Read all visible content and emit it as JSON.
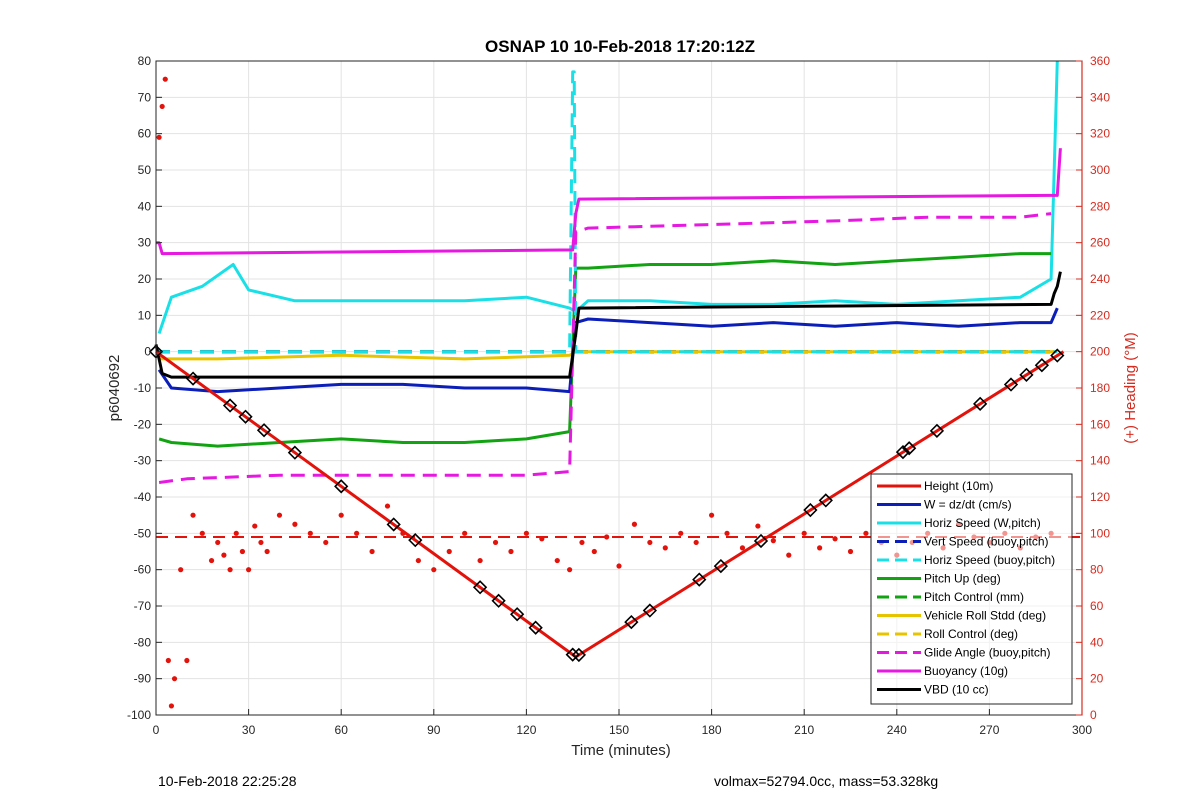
{
  "chart_data": {
    "type": "line",
    "title": "OSNAP 10 10-Feb-2018 17:20:12Z",
    "xlabel": "Time (minutes)",
    "ylabel": "p6040692",
    "y2label": "(+) Heading (°M)",
    "xlim": [
      0,
      300
    ],
    "ylim": [
      -100,
      80
    ],
    "y2lim": [
      0,
      360
    ],
    "xticks": [
      "0",
      "30",
      "60",
      "90",
      "120",
      "150",
      "180",
      "210",
      "240",
      "270",
      "300"
    ],
    "yticks": [
      "80",
      "70",
      "60",
      "50",
      "40",
      "30",
      "20",
      "10",
      "0",
      "-10",
      "-20",
      "-30",
      "-40",
      "-50",
      "-60",
      "-70",
      "-80",
      "-90",
      "-100"
    ],
    "y2ticks": [
      "360",
      "340",
      "320",
      "300",
      "280",
      "260",
      "240",
      "220",
      "200",
      "180",
      "160",
      "140",
      "120",
      "100",
      "80",
      "60",
      "40",
      "20",
      "0"
    ],
    "grid": true,
    "legend_position": "bottom-right",
    "series": [
      {
        "name": "Height (10m)",
        "color": "#e3120b",
        "style": "solid",
        "x": [
          0,
          136,
          294
        ],
        "y": [
          0,
          -84,
          0
        ]
      },
      {
        "name": "W = dz/dt (cm/s)",
        "color": "#0b1fb8",
        "style": "solid",
        "x": [
          1,
          5,
          20,
          40,
          60,
          80,
          100,
          120,
          134,
          136,
          140,
          160,
          180,
          200,
          220,
          240,
          260,
          280,
          290,
          292
        ],
        "y": [
          -5,
          -10,
          -11,
          -10,
          -9,
          -9,
          -10,
          -10,
          -11,
          8,
          9,
          8,
          7,
          8,
          7,
          8,
          7,
          8,
          8,
          12
        ]
      },
      {
        "name": "Horiz Speed (W,pitch)",
        "color": "#19e0e6",
        "style": "solid",
        "x": [
          1,
          5,
          15,
          25,
          30,
          45,
          60,
          80,
          100,
          120,
          134,
          136,
          140,
          160,
          180,
          200,
          220,
          240,
          260,
          280,
          290,
          292
        ],
        "y": [
          5,
          15,
          18,
          24,
          17,
          14,
          14,
          14,
          14,
          15,
          12,
          11,
          14,
          14,
          13,
          13,
          14,
          13,
          14,
          15,
          20,
          80
        ]
      },
      {
        "name": "Vert Speed (buoy,pitch)",
        "color": "#0b1fb8",
        "style": "dashed",
        "x": [
          0,
          135,
          136,
          292
        ],
        "y": [
          0,
          0,
          0,
          0
        ]
      },
      {
        "name": "Horiz Speed (buoy,pitch)",
        "color": "#19e0e6",
        "style": "dashed",
        "x": [
          0,
          134,
          135,
          135.5,
          136,
          292
        ],
        "y": [
          0,
          0,
          77,
          77,
          0,
          0
        ]
      },
      {
        "name": "Pitch Up (deg)",
        "color": "#12a312",
        "style": "solid",
        "x": [
          1,
          5,
          20,
          40,
          60,
          80,
          100,
          120,
          134,
          136,
          140,
          160,
          180,
          200,
          220,
          240,
          260,
          280,
          290
        ],
        "y": [
          -24,
          -25,
          -26,
          -25,
          -24,
          -25,
          -25,
          -24,
          -22,
          23,
          23,
          24,
          24,
          25,
          24,
          25,
          26,
          27,
          27
        ]
      },
      {
        "name": "Pitch Control (mm)",
        "color": "#12a312",
        "style": "dashed",
        "x": [
          0,
          292
        ],
        "y": [
          0,
          0
        ]
      },
      {
        "name": "Vehicle Roll Stdd (deg)",
        "color": "#e6c400",
        "style": "solid",
        "x": [
          1,
          20,
          60,
          100,
          134,
          136,
          200,
          260,
          292
        ],
        "y": [
          -2,
          -2,
          -1,
          -2,
          -1,
          0,
          0,
          0,
          0
        ]
      },
      {
        "name": "Roll Control (deg)",
        "color": "#e6c400",
        "style": "dashed",
        "x": [
          0,
          292
        ],
        "y": [
          0,
          0
        ]
      },
      {
        "name": "Glide Angle (buoy,pitch)",
        "color": "#e619e0",
        "style": "dashed",
        "x": [
          1,
          10,
          40,
          80,
          120,
          134,
          136,
          140,
          180,
          220,
          250,
          280,
          290
        ],
        "y": [
          -36,
          -35,
          -34,
          -34,
          -34,
          -33,
          33,
          34,
          35,
          36,
          37,
          37,
          38
        ]
      },
      {
        "name": "Buoyancy (10g)",
        "color": "#e619e0",
        "style": "solid",
        "x": [
          0,
          1,
          2,
          135,
          136,
          137,
          290,
          292,
          293
        ],
        "y": [
          30,
          30,
          27,
          28,
          38,
          42,
          43,
          43,
          56
        ]
      },
      {
        "name": "VBD (10 cc)",
        "color": "#000000",
        "style": "solid",
        "x": [
          0,
          1,
          2,
          5,
          134,
          135,
          136,
          137,
          290,
          291,
          292,
          293
        ],
        "y": [
          2,
          -2,
          -6,
          -7,
          -7,
          -1,
          5,
          12,
          13,
          16,
          18,
          22
        ]
      }
    ],
    "heading_series": {
      "name": "heading",
      "color": "#e3120b",
      "x": [
        1,
        2,
        3,
        4,
        5,
        6,
        8,
        10,
        12,
        15,
        18,
        20,
        22,
        24,
        26,
        28,
        30,
        32,
        34,
        36,
        40,
        45,
        50,
        55,
        60,
        65,
        70,
        75,
        80,
        85,
        90,
        95,
        100,
        105,
        110,
        115,
        120,
        125,
        130,
        134,
        138,
        142,
        146,
        150,
        155,
        160,
        165,
        170,
        175,
        180,
        185,
        190,
        195,
        200,
        205,
        210,
        215,
        220,
        225,
        230,
        235,
        240,
        245,
        250,
        255,
        260,
        265,
        270,
        275,
        280,
        285,
        290
      ],
      "y": [
        318,
        335,
        350,
        30,
        5,
        20,
        80,
        30,
        110,
        100,
        85,
        95,
        88,
        80,
        100,
        90,
        80,
        104,
        95,
        90,
        110,
        105,
        100,
        95,
        110,
        100,
        90,
        115,
        100,
        85,
        80,
        90,
        100,
        85,
        95,
        90,
        100,
        97,
        85,
        80,
        95,
        90,
        98,
        82,
        105,
        95,
        92,
        100,
        95,
        110,
        100,
        92,
        104,
        96,
        88,
        100,
        92,
        97,
        90,
        100,
        95,
        88,
        95,
        100,
        92,
        105,
        98,
        95,
        100,
        92,
        98,
        100
      ]
    },
    "heading_ref": {
      "color": "#e3120b",
      "style": "dashed",
      "y2": 98
    },
    "height_markers_x": [
      0,
      12,
      24,
      29,
      35,
      45,
      60,
      77,
      84,
      105,
      111,
      117,
      123,
      135,
      137,
      154,
      160,
      176,
      183,
      196,
      212,
      217,
      242,
      244,
      253,
      267,
      277,
      282,
      287,
      292
    ]
  },
  "footer": {
    "left": "10-Feb-2018 22:25:28",
    "right": "volmax=52794.0cc, mass=53.328kg"
  }
}
